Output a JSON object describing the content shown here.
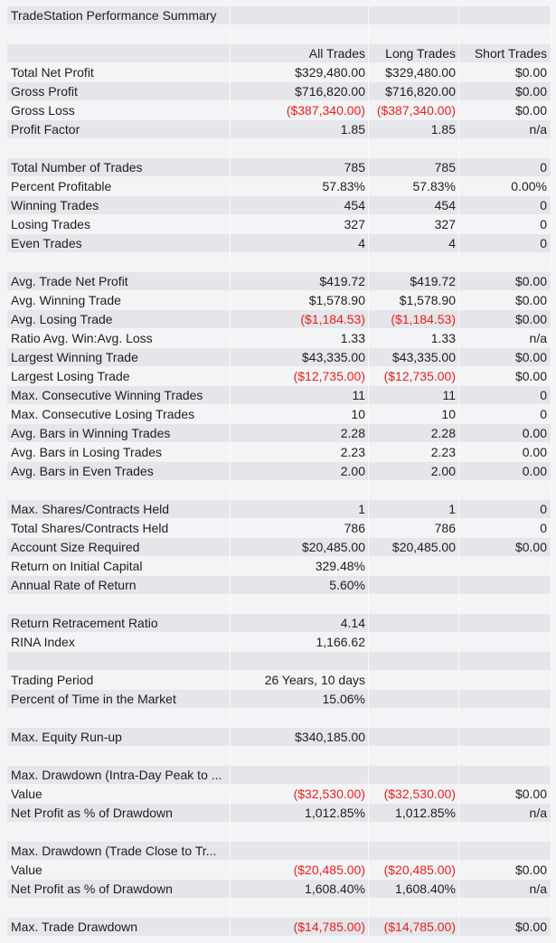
{
  "table": {
    "rows": [
      [
        "TradeStation Performance Summary"
      ],
      [],
      [
        null,
        "All Trades",
        "Long Trades",
        "Short Trades"
      ],
      [
        "Total Net Profit",
        "$329,480.00",
        "$329,480.00",
        "$0.00"
      ],
      [
        "Gross Profit",
        "$716,820.00",
        "$716,820.00",
        "$0.00"
      ],
      [
        "Gross Loss",
        "($387,340.00)",
        "($387,340.00)",
        "$0.00"
      ],
      [
        "Profit Factor",
        "1.85",
        "1.85",
        "n/a"
      ],
      [],
      [
        "Total Number of Trades",
        "785",
        "785",
        "0"
      ],
      [
        "Percent Profitable",
        "57.83%",
        "57.83%",
        "0.00%"
      ],
      [
        "Winning Trades",
        "454",
        "454",
        "0"
      ],
      [
        "Losing Trades",
        "327",
        "327",
        "0"
      ],
      [
        "Even Trades",
        "4",
        "4",
        "0"
      ],
      [],
      [
        "Avg. Trade Net Profit",
        "$419.72",
        "$419.72",
        "$0.00"
      ],
      [
        "Avg. Winning Trade",
        "$1,578.90",
        "$1,578.90",
        "$0.00"
      ],
      [
        "Avg. Losing Trade",
        "($1,184.53)",
        "($1,184.53)",
        "$0.00"
      ],
      [
        "Ratio Avg. Win:Avg. Loss",
        "1.33",
        "1.33",
        "n/a"
      ],
      [
        "Largest Winning Trade",
        "$43,335.00",
        "$43,335.00",
        "$0.00"
      ],
      [
        "Largest Losing Trade",
        "($12,735.00)",
        "($12,735.00)",
        "$0.00"
      ],
      [
        "Max. Consecutive Winning Trades",
        "11",
        "11",
        "0"
      ],
      [
        "Max. Consecutive Losing Trades",
        "10",
        "10",
        "0"
      ],
      [
        "Avg. Bars in Winning Trades",
        "2.28",
        "2.28",
        "0.00"
      ],
      [
        "Avg. Bars in Losing Trades",
        "2.23",
        "2.23",
        "0.00"
      ],
      [
        "Avg. Bars in Even Trades",
        "2.00",
        "2.00",
        "0.00"
      ],
      [],
      [
        "Max. Shares/Contracts Held",
        "1",
        "1",
        "0"
      ],
      [
        "Total Shares/Contracts Held",
        "786",
        "786",
        "0"
      ],
      [
        "Account Size Required",
        "$20,485.00",
        "$20,485.00",
        "$0.00"
      ],
      [
        "Return on Initial Capital",
        "329.48%"
      ],
      [
        "Annual Rate of Return",
        "5.60%"
      ],
      [],
      [
        "Return Retracement Ratio",
        "4.14"
      ],
      [
        "RINA Index",
        "1,166.62"
      ],
      [],
      [
        "Trading Period",
        "26 Years, 10 days"
      ],
      [
        "Percent of Time in the Market",
        "15.06%"
      ],
      [],
      [
        "Max. Equity Run-up",
        "$340,185.00"
      ],
      [],
      [
        "Max. Drawdown (Intra-Day Peak to ..."
      ],
      [
        "Value",
        "($32,530.00)",
        "($32,530.00)",
        "$0.00"
      ],
      [
        "Net Profit as % of Drawdown",
        "1,012.85%",
        "1,012.85%",
        "n/a"
      ],
      [],
      [
        "Max. Drawdown (Trade Close to Tr..."
      ],
      [
        "Value",
        "($20,485.00)",
        "($20,485.00)",
        "$0.00"
      ],
      [
        "Net Profit as % of Drawdown",
        "1,608.40%",
        "1,608.40%",
        "n/a"
      ],
      [],
      [
        "Max. Trade Drawdown",
        "($14,785.00)",
        "($14,785.00)",
        "$0.00"
      ]
    ]
  }
}
